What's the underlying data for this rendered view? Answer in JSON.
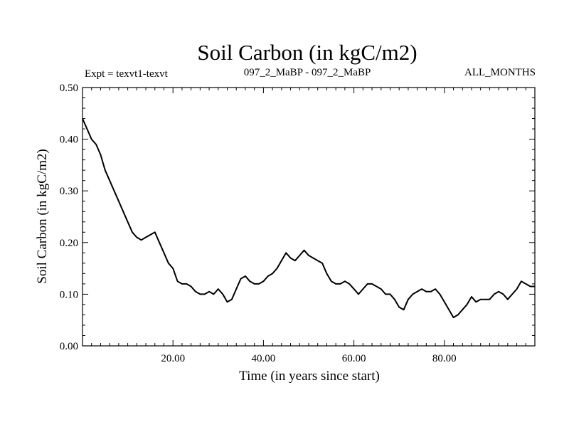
{
  "chart_data": {
    "type": "line",
    "title": "Soil Carbon (in kgC/m2)",
    "subtitle_left": "Expt = texvt1-texvt",
    "subtitle_center": "097_2_MaBP - 097_2_MaBP",
    "subtitle_right": "ALL_MONTHS",
    "xlabel": "Time (in years since start)",
    "ylabel": "Soil Carbon (in kgC/m2)",
    "xlim": [
      0,
      100
    ],
    "ylim": [
      0,
      0.5
    ],
    "grid": false,
    "x_ticks": [
      20,
      40,
      60,
      80
    ],
    "x_tick_labels": [
      "20.00",
      "40.00",
      "60.00",
      "80.00"
    ],
    "y_ticks": [
      0,
      0.1,
      0.2,
      0.3,
      0.4,
      0.5
    ],
    "y_tick_labels": [
      "0.00",
      "0.10",
      "0.20",
      "0.30",
      "0.40",
      "0.50"
    ],
    "series": [
      {
        "name": "Soil Carbon",
        "color": "#000000",
        "x": [
          0,
          1,
          2,
          3,
          4,
          5,
          6,
          7,
          8,
          9,
          10,
          11,
          12,
          13,
          14,
          15,
          16,
          17,
          18,
          19,
          20,
          21,
          22,
          23,
          24,
          25,
          26,
          27,
          28,
          29,
          30,
          31,
          32,
          33,
          34,
          35,
          36,
          37,
          38,
          39,
          40,
          41,
          42,
          43,
          44,
          45,
          46,
          47,
          48,
          49,
          50,
          51,
          52,
          53,
          54,
          55,
          56,
          57,
          58,
          59,
          60,
          61,
          62,
          63,
          64,
          65,
          66,
          67,
          68,
          69,
          70,
          71,
          72,
          73,
          74,
          75,
          76,
          77,
          78,
          79,
          80,
          81,
          82,
          83,
          84,
          85,
          86,
          87,
          88,
          89,
          90,
          91,
          92,
          93,
          94,
          95,
          96,
          97,
          98,
          99,
          100
        ],
        "values": [
          0.44,
          0.42,
          0.4,
          0.39,
          0.37,
          0.34,
          0.32,
          0.3,
          0.28,
          0.26,
          0.24,
          0.22,
          0.21,
          0.205,
          0.21,
          0.215,
          0.22,
          0.2,
          0.18,
          0.16,
          0.15,
          0.125,
          0.12,
          0.12,
          0.115,
          0.105,
          0.1,
          0.1,
          0.105,
          0.1,
          0.11,
          0.1,
          0.085,
          0.09,
          0.11,
          0.13,
          0.135,
          0.125,
          0.12,
          0.12,
          0.125,
          0.135,
          0.14,
          0.15,
          0.165,
          0.18,
          0.17,
          0.165,
          0.175,
          0.185,
          0.175,
          0.17,
          0.165,
          0.16,
          0.14,
          0.125,
          0.12,
          0.12,
          0.125,
          0.12,
          0.11,
          0.1,
          0.11,
          0.12,
          0.12,
          0.115,
          0.11,
          0.1,
          0.1,
          0.09,
          0.075,
          0.07,
          0.09,
          0.1,
          0.105,
          0.11,
          0.105,
          0.105,
          0.11,
          0.1,
          0.085,
          0.07,
          0.055,
          0.06,
          0.07,
          0.08,
          0.095,
          0.085,
          0.09,
          0.09,
          0.09,
          0.1,
          0.105,
          0.1,
          0.09,
          0.1,
          0.11,
          0.125,
          0.12,
          0.115,
          0.115
        ]
      }
    ]
  }
}
